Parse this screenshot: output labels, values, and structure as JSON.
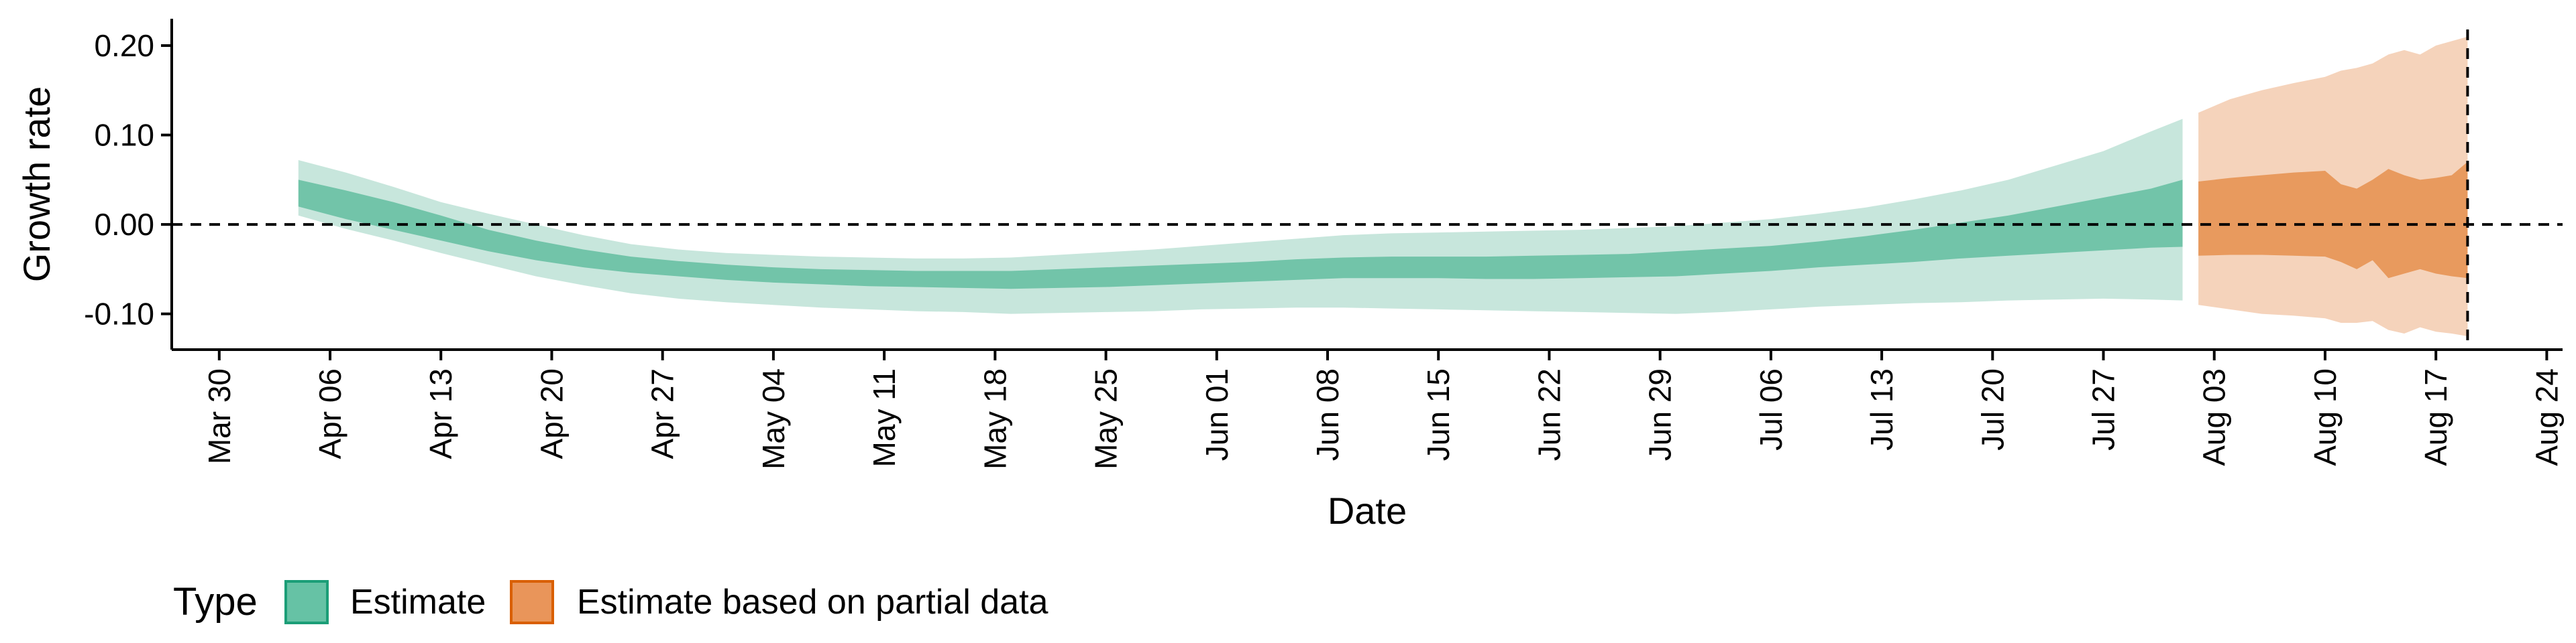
{
  "chart_data": {
    "type": "area",
    "xlabel": "Date",
    "ylabel": "Growth rate",
    "xlim": [
      "2020-03-27",
      "2020-08-25"
    ],
    "ylim": [
      -0.14,
      0.23
    ],
    "x_ticks": [
      "2020-03-30",
      "2020-04-06",
      "2020-04-13",
      "2020-04-20",
      "2020-04-27",
      "2020-05-04",
      "2020-05-11",
      "2020-05-18",
      "2020-05-25",
      "2020-06-01",
      "2020-06-08",
      "2020-06-15",
      "2020-06-22",
      "2020-06-29",
      "2020-07-06",
      "2020-07-13",
      "2020-07-20",
      "2020-07-27",
      "2020-08-03",
      "2020-08-10",
      "2020-08-17",
      "2020-08-24"
    ],
    "x_tick_labels": [
      "Mar 30",
      "Apr 06",
      "Apr 13",
      "Apr 20",
      "Apr 27",
      "May 04",
      "May 11",
      "May 18",
      "May 25",
      "Jun 01",
      "Jun 08",
      "Jun 15",
      "Jun 22",
      "Jun 29",
      "Jul 06",
      "Jul 13",
      "Jul 20",
      "Jul 27",
      "Aug 03",
      "Aug 10",
      "Aug 17",
      "Aug 24"
    ],
    "y_ticks": [
      -0.1,
      0.0,
      0.1,
      0.2
    ],
    "y_tick_labels": [
      "-0.10",
      "0.00",
      "0.10",
      "0.20"
    ],
    "reference_lines": {
      "horizontal_y": 0.0,
      "vertical_x": "2020-08-19"
    },
    "grid": false,
    "legend": {
      "title": "Type",
      "position": "bottom-left",
      "entries": [
        {
          "label": "Estimate",
          "fill": "#66c2a5",
          "border": "#1b9e77"
        },
        {
          "label": "Estimate based on partial data",
          "fill": "#e9955a",
          "border": "#d95f02"
        }
      ]
    },
    "series": [
      {
        "name": "Estimate",
        "color_inner": "#72c4a9",
        "color_outer": "#c7e6dc",
        "x": [
          "2020-04-04",
          "2020-04-07",
          "2020-04-10",
          "2020-04-13",
          "2020-04-16",
          "2020-04-19",
          "2020-04-22",
          "2020-04-25",
          "2020-04-28",
          "2020-05-01",
          "2020-05-04",
          "2020-05-07",
          "2020-05-10",
          "2020-05-13",
          "2020-05-16",
          "2020-05-19",
          "2020-05-22",
          "2020-05-25",
          "2020-05-28",
          "2020-05-31",
          "2020-06-03",
          "2020-06-06",
          "2020-06-09",
          "2020-06-12",
          "2020-06-15",
          "2020-06-18",
          "2020-06-21",
          "2020-06-24",
          "2020-06-27",
          "2020-06-30",
          "2020-07-03",
          "2020-07-06",
          "2020-07-09",
          "2020-07-12",
          "2020-07-15",
          "2020-07-18",
          "2020-07-21",
          "2020-07-24",
          "2020-07-27",
          "2020-07-30",
          "2020-08-01"
        ],
        "lower_outer": [
          0.01,
          -0.005,
          -0.018,
          -0.032,
          -0.045,
          -0.058,
          -0.068,
          -0.077,
          -0.083,
          -0.087,
          -0.09,
          -0.093,
          -0.095,
          -0.097,
          -0.098,
          -0.1,
          -0.099,
          -0.098,
          -0.097,
          -0.095,
          -0.094,
          -0.093,
          -0.093,
          -0.094,
          -0.095,
          -0.096,
          -0.097,
          -0.098,
          -0.099,
          -0.1,
          -0.098,
          -0.095,
          -0.092,
          -0.09,
          -0.088,
          -0.087,
          -0.085,
          -0.084,
          -0.083,
          -0.084,
          -0.085
        ],
        "lower_inner": [
          0.02,
          0.006,
          -0.006,
          -0.018,
          -0.03,
          -0.04,
          -0.048,
          -0.054,
          -0.058,
          -0.062,
          -0.065,
          -0.067,
          -0.069,
          -0.07,
          -0.071,
          -0.072,
          -0.071,
          -0.07,
          -0.068,
          -0.066,
          -0.064,
          -0.062,
          -0.06,
          -0.06,
          -0.06,
          -0.061,
          -0.061,
          -0.06,
          -0.059,
          -0.058,
          -0.055,
          -0.052,
          -0.048,
          -0.045,
          -0.042,
          -0.038,
          -0.035,
          -0.032,
          -0.029,
          -0.026,
          -0.025
        ],
        "upper_inner": [
          0.05,
          0.038,
          0.025,
          0.01,
          -0.006,
          -0.018,
          -0.028,
          -0.036,
          -0.041,
          -0.045,
          -0.048,
          -0.05,
          -0.051,
          -0.052,
          -0.052,
          -0.052,
          -0.05,
          -0.048,
          -0.046,
          -0.044,
          -0.042,
          -0.039,
          -0.037,
          -0.036,
          -0.036,
          -0.036,
          -0.035,
          -0.034,
          -0.033,
          -0.03,
          -0.027,
          -0.024,
          -0.019,
          -0.013,
          -0.006,
          0.002,
          0.01,
          0.02,
          0.03,
          0.04,
          0.05
        ],
        "upper_outer": [
          0.072,
          0.058,
          0.042,
          0.025,
          0.012,
          0.0,
          -0.012,
          -0.022,
          -0.028,
          -0.032,
          -0.034,
          -0.036,
          -0.037,
          -0.038,
          -0.038,
          -0.037,
          -0.034,
          -0.031,
          -0.028,
          -0.024,
          -0.02,
          -0.016,
          -0.012,
          -0.01,
          -0.009,
          -0.008,
          -0.007,
          -0.006,
          -0.004,
          -0.002,
          0.002,
          0.006,
          0.012,
          0.019,
          0.028,
          0.038,
          0.05,
          0.066,
          0.082,
          0.104,
          0.118
        ]
      },
      {
        "name": "Estimate based on partial data",
        "color_inner": "#e89a5e",
        "color_outer": "#f5d3bb",
        "x": [
          "2020-08-02",
          "2020-08-04",
          "2020-08-06",
          "2020-08-08",
          "2020-08-10",
          "2020-08-11",
          "2020-08-12",
          "2020-08-13",
          "2020-08-14",
          "2020-08-15",
          "2020-08-16",
          "2020-08-17",
          "2020-08-18",
          "2020-08-19"
        ],
        "lower_outer": [
          -0.09,
          -0.095,
          -0.1,
          -0.102,
          -0.105,
          -0.11,
          -0.11,
          -0.108,
          -0.118,
          -0.122,
          -0.115,
          -0.12,
          -0.122,
          -0.125
        ],
        "lower_inner": [
          -0.035,
          -0.034,
          -0.034,
          -0.035,
          -0.036,
          -0.042,
          -0.05,
          -0.04,
          -0.06,
          -0.055,
          -0.05,
          -0.055,
          -0.058,
          -0.06
        ],
        "upper_inner": [
          0.048,
          0.052,
          0.055,
          0.058,
          0.06,
          0.045,
          0.04,
          0.05,
          0.062,
          0.055,
          0.05,
          0.052,
          0.055,
          0.07
        ],
        "upper_outer": [
          0.125,
          0.14,
          0.15,
          0.158,
          0.165,
          0.172,
          0.175,
          0.18,
          0.19,
          0.195,
          0.19,
          0.2,
          0.205,
          0.21
        ]
      }
    ]
  }
}
